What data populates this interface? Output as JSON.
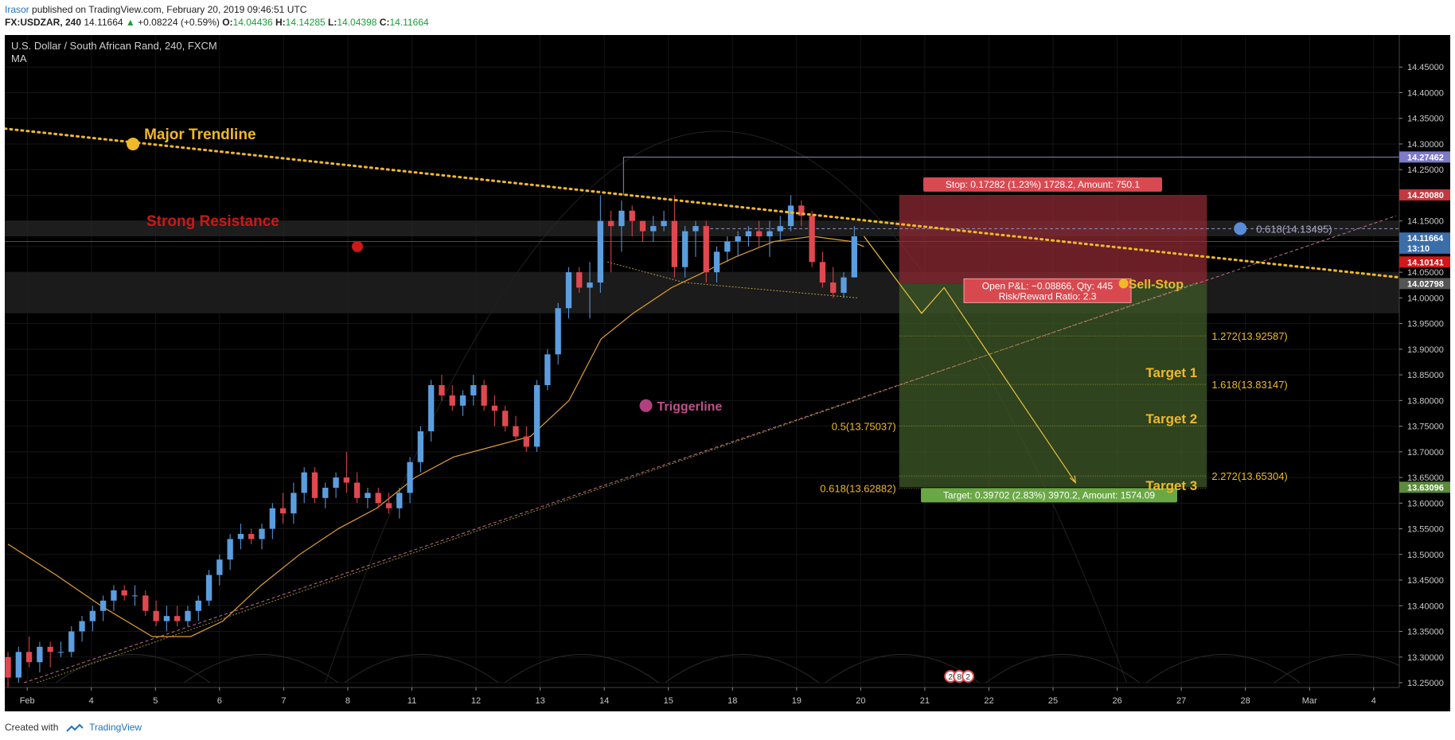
{
  "header": {
    "author": "Irasor",
    "published_text": "published on TradingView.com, February 20, 2019 09:46:51 UTC",
    "ticker": "FX:USDZAR, 240",
    "last": "14.11664",
    "change": "+0.08224 (+0.59%)",
    "o_label": "O:",
    "o_value": "14.04436",
    "h_label": "H:",
    "h_value": "14.14285",
    "l_label": "L:",
    "l_value": "14.04398",
    "c_label": "C:",
    "c_value": "14.11664"
  },
  "footer": {
    "created_with": "Created with",
    "brand": "TradingView"
  },
  "colors": {
    "background": "#000000",
    "up_candle": "#5b9ee0",
    "down_candle": "#e04850",
    "trendline": "#f0b82a",
    "resistance": "#cc1818",
    "ma": "#e0a030",
    "stop_zone": "#8c2a32",
    "target_zone": "#3e5a28",
    "triggerline": "#b04080"
  },
  "chart_data": {
    "type": "candlestick",
    "title": "U.S. Dollar / South African Rand, 240, FXCM",
    "indicator": "MA",
    "ylim": [
      13.25,
      14.5
    ],
    "y_ticks": [
      "14.45000",
      "14.40000",
      "14.35000",
      "14.30000",
      "14.25000",
      "14.20000",
      "14.15000",
      "14.10000",
      "14.05000",
      "14.00000",
      "13.95000",
      "13.90000",
      "13.85000",
      "13.80000",
      "13.75000",
      "13.70000",
      "13.65000",
      "13.60000",
      "13.55000",
      "13.50000",
      "13.45000",
      "13.40000",
      "13.35000",
      "13.30000",
      "13.25000"
    ],
    "x_ticks": [
      {
        "label": "Feb",
        "t": 0.35
      },
      {
        "label": "4",
        "t": 1.35
      },
      {
        "label": "5",
        "t": 2.35
      },
      {
        "label": "6",
        "t": 3.35
      },
      {
        "label": "7",
        "t": 4.35
      },
      {
        "label": "8",
        "t": 5.35
      },
      {
        "label": "11",
        "t": 6.35
      },
      {
        "label": "12",
        "t": 7.35
      },
      {
        "label": "13",
        "t": 8.35
      },
      {
        "label": "14",
        "t": 9.35
      },
      {
        "label": "15",
        "t": 10.35
      },
      {
        "label": "18",
        "t": 11.35
      },
      {
        "label": "19",
        "t": 12.35
      },
      {
        "label": "20",
        "t": 13.35
      },
      {
        "label": "21",
        "t": 14.35
      },
      {
        "label": "22",
        "t": 15.35
      },
      {
        "label": "25",
        "t": 16.35
      },
      {
        "label": "26",
        "t": 17.35
      },
      {
        "label": "27",
        "t": 18.35
      },
      {
        "label": "28",
        "t": 19.35
      },
      {
        "label": "Mar",
        "t": 20.35
      },
      {
        "label": "4",
        "t": 21.35
      }
    ],
    "xlim": [
      0,
      21.75
    ],
    "candles": [
      [
        13.3,
        13.31,
        13.24,
        13.26
      ],
      [
        13.26,
        13.32,
        13.25,
        13.31
      ],
      [
        13.31,
        13.34,
        13.28,
        13.29
      ],
      [
        13.29,
        13.33,
        13.27,
        13.32
      ],
      [
        13.32,
        13.33,
        13.28,
        13.31
      ],
      [
        13.31,
        13.33,
        13.3,
        13.31
      ],
      [
        13.31,
        13.36,
        13.3,
        13.35
      ],
      [
        13.35,
        13.38,
        13.33,
        13.37
      ],
      [
        13.37,
        13.4,
        13.35,
        13.39
      ],
      [
        13.39,
        13.42,
        13.37,
        13.41
      ],
      [
        13.41,
        13.44,
        13.39,
        13.43
      ],
      [
        13.43,
        13.44,
        13.41,
        13.42
      ],
      [
        13.42,
        13.44,
        13.4,
        13.42
      ],
      [
        13.42,
        13.43,
        13.38,
        13.39
      ],
      [
        13.39,
        13.41,
        13.36,
        13.37
      ],
      [
        13.37,
        13.4,
        13.35,
        13.38
      ],
      [
        13.38,
        13.4,
        13.36,
        13.37
      ],
      [
        13.37,
        13.4,
        13.36,
        13.39
      ],
      [
        13.39,
        13.42,
        13.37,
        13.41
      ],
      [
        13.41,
        13.47,
        13.4,
        13.46
      ],
      [
        13.46,
        13.5,
        13.44,
        13.49
      ],
      [
        13.49,
        13.54,
        13.47,
        13.53
      ],
      [
        13.53,
        13.56,
        13.51,
        13.54
      ],
      [
        13.54,
        13.55,
        13.52,
        13.53
      ],
      [
        13.53,
        13.56,
        13.51,
        13.55
      ],
      [
        13.55,
        13.6,
        13.53,
        13.59
      ],
      [
        13.59,
        13.62,
        13.56,
        13.58
      ],
      [
        13.58,
        13.64,
        13.56,
        13.62
      ],
      [
        13.62,
        13.67,
        13.6,
        13.66
      ],
      [
        13.66,
        13.67,
        13.6,
        13.61
      ],
      [
        13.61,
        13.64,
        13.59,
        13.63
      ],
      [
        13.63,
        13.66,
        13.61,
        13.65
      ],
      [
        13.65,
        13.7,
        13.62,
        13.64
      ],
      [
        13.64,
        13.66,
        13.6,
        13.61
      ],
      [
        13.61,
        13.63,
        13.59,
        13.62
      ],
      [
        13.62,
        13.63,
        13.59,
        13.6
      ],
      [
        13.6,
        13.62,
        13.58,
        13.59
      ],
      [
        13.59,
        13.63,
        13.57,
        13.62
      ],
      [
        13.62,
        13.69,
        13.6,
        13.68
      ],
      [
        13.68,
        13.75,
        13.66,
        13.74
      ],
      [
        13.74,
        13.84,
        13.72,
        13.83
      ],
      [
        13.83,
        13.85,
        13.8,
        13.81
      ],
      [
        13.81,
        13.83,
        13.78,
        13.79
      ],
      [
        13.79,
        13.82,
        13.77,
        13.81
      ],
      [
        13.81,
        13.85,
        13.79,
        13.83
      ],
      [
        13.83,
        13.84,
        13.78,
        13.79
      ],
      [
        13.79,
        13.81,
        13.75,
        13.78
      ],
      [
        13.78,
        13.79,
        13.74,
        13.75
      ],
      [
        13.75,
        13.77,
        13.72,
        13.73
      ],
      [
        13.73,
        13.75,
        13.7,
        13.71
      ],
      [
        13.71,
        13.84,
        13.7,
        13.83
      ],
      [
        13.83,
        13.9,
        13.82,
        13.89
      ],
      [
        13.89,
        13.99,
        13.87,
        13.98
      ],
      [
        13.98,
        14.06,
        13.96,
        14.05
      ],
      [
        14.05,
        14.06,
        14.01,
        14.02
      ],
      [
        14.02,
        14.07,
        13.96,
        14.03
      ],
      [
        14.03,
        14.2,
        14.01,
        14.15
      ],
      [
        14.15,
        14.17,
        14.05,
        14.14
      ],
      [
        14.14,
        14.19,
        14.09,
        14.17
      ],
      [
        14.17,
        14.18,
        14.12,
        14.15
      ],
      [
        14.15,
        14.15,
        14.11,
        14.13
      ],
      [
        14.13,
        14.16,
        14.11,
        14.14
      ],
      [
        14.14,
        14.17,
        14.13,
        14.15
      ],
      [
        14.15,
        14.2,
        14.04,
        14.06
      ],
      [
        14.06,
        14.14,
        14.04,
        14.13
      ],
      [
        14.13,
        14.15,
        14.08,
        14.14
      ],
      [
        14.14,
        14.15,
        14.03,
        14.05
      ],
      [
        14.05,
        14.1,
        14.03,
        14.09
      ],
      [
        14.09,
        14.12,
        14.07,
        14.11
      ],
      [
        14.11,
        14.13,
        14.08,
        14.12
      ],
      [
        14.12,
        14.14,
        14.1,
        14.13
      ],
      [
        14.13,
        14.15,
        14.1,
        14.12
      ],
      [
        14.12,
        14.15,
        14.08,
        14.13
      ],
      [
        14.13,
        14.16,
        14.11,
        14.14
      ],
      [
        14.14,
        14.2,
        14.13,
        14.18
      ],
      [
        14.18,
        14.19,
        14.14,
        14.16
      ],
      [
        14.16,
        14.17,
        14.06,
        14.07
      ],
      [
        14.07,
        14.09,
        14.02,
        14.03
      ],
      [
        14.03,
        14.06,
        14.0,
        14.01
      ],
      [
        14.01,
        14.05,
        14.0,
        14.04
      ],
      [
        14.04,
        14.14,
        14.04,
        14.12
      ]
    ],
    "candle_start_t": 0.05,
    "candle_step_t": 0.165,
    "ma_line": [
      [
        0.05,
        13.52
      ],
      [
        0.8,
        13.46
      ],
      [
        1.5,
        13.4
      ],
      [
        2.3,
        13.34
      ],
      [
        2.9,
        13.34
      ],
      [
        3.4,
        13.37
      ],
      [
        4.0,
        13.44
      ],
      [
        4.6,
        13.5
      ],
      [
        5.2,
        13.55
      ],
      [
        5.8,
        13.59
      ],
      [
        6.4,
        13.65
      ],
      [
        7.0,
        13.69
      ],
      [
        7.6,
        13.71
      ],
      [
        8.2,
        13.73
      ],
      [
        8.8,
        13.8
      ],
      [
        9.3,
        13.92
      ],
      [
        9.8,
        13.97
      ],
      [
        10.4,
        14.02
      ],
      [
        10.9,
        14.05
      ],
      [
        11.4,
        14.08
      ],
      [
        12.0,
        14.11
      ],
      [
        12.6,
        14.12
      ],
      [
        13.2,
        14.11
      ],
      [
        13.4,
        14.1
      ]
    ],
    "annotations": {
      "major_trendline": {
        "label": "Major Trendline",
        "from": [
          0,
          14.33
        ],
        "to": [
          21.75,
          14.04
        ],
        "dot": [
          2.0,
          14.3
        ]
      },
      "strong_resistance": {
        "label": "Strong Resistance",
        "level_top": 14.15,
        "level_bottom": 14.12,
        "line": 14.11,
        "dot": [
          5.5,
          14.1
        ]
      },
      "support_band": {
        "top": 14.05,
        "bottom": 13.97
      },
      "triggerline": {
        "label": "Triggerline",
        "from": [
          0.3,
          13.25
        ],
        "to": [
          21.7,
          14.16
        ],
        "dot": [
          10.0,
          13.79
        ]
      },
      "lower_trendline": {
        "from": [
          0.5,
          13.25
        ],
        "to": [
          18.6,
          14.03
        ]
      },
      "triangle_top": [
        [
          9.4,
          14.07
        ],
        [
          10.6,
          14.03
        ],
        [
          13.3,
          14.0
        ]
      ],
      "horizontal_levels": [
        {
          "y": 14.27462,
          "from_t": 9.65
        },
        {
          "y": 14.13495,
          "from_t": 11.0,
          "dashed": true
        }
      ],
      "position": {
        "from_t": 13.95,
        "to_t": 18.75,
        "entry": 14.02798,
        "stop": 14.2008,
        "target": 13.63096,
        "stop_label": "Stop: 0.17282 (1.23%) 1728.2, Amount: 750.1",
        "target_label": "Target: 0.39702 (2.83%) 3970.2, Amount: 1574.09",
        "pl_label_line1": "Open P&L: −0.08866, Qty: 445",
        "pl_label_line2": "Risk/Reward Ratio: 2.3"
      },
      "sell_stop_label": "Sell-Stop",
      "targets": [
        {
          "label": "Target 1",
          "y": 13.855
        },
        {
          "label": "Target 2",
          "y": 13.765
        },
        {
          "label": "Target 3",
          "y": 13.635
        }
      ],
      "fib_levels": [
        {
          "label": "0.618(14.13495)",
          "y": 14.13495,
          "side": "right-blue"
        },
        {
          "label": "1.272(13.92587)",
          "y": 13.92587,
          "side": "right"
        },
        {
          "label": "1.618(13.83147)",
          "y": 13.83147,
          "side": "right"
        },
        {
          "label": "0.5(13.75037)",
          "y": 13.75037,
          "side": "left"
        },
        {
          "label": "2.272(13.65304)",
          "y": 13.65304,
          "side": "right"
        },
        {
          "label": "0.618(13.62882)",
          "y": 13.62882,
          "side": "left"
        }
      ],
      "projection_path": [
        [
          13.4,
          14.12
        ],
        [
          14.3,
          13.97
        ],
        [
          14.65,
          14.02
        ],
        [
          16.7,
          13.64
        ]
      ],
      "price_tags": [
        {
          "label": "14.27462",
          "y": 14.27462,
          "color": "#7d7ac6"
        },
        {
          "label": "14.20080",
          "y": 14.2008,
          "color": "#c0393e"
        },
        {
          "label": "14.11664",
          "y": 14.11664,
          "color": "#3b6ea8"
        },
        {
          "label": "13:10",
          "y": 14.097,
          "color": "#3b6ea8"
        },
        {
          "label": "14.10141",
          "y": 14.07,
          "color": "#d3181a"
        },
        {
          "label": "14.02798",
          "y": 14.02798,
          "color": "#555555"
        },
        {
          "label": "13.63096",
          "y": 13.63096,
          "color": "#5a8a3a"
        }
      ],
      "event_badges": [
        "2",
        "8",
        "2"
      ]
    }
  }
}
